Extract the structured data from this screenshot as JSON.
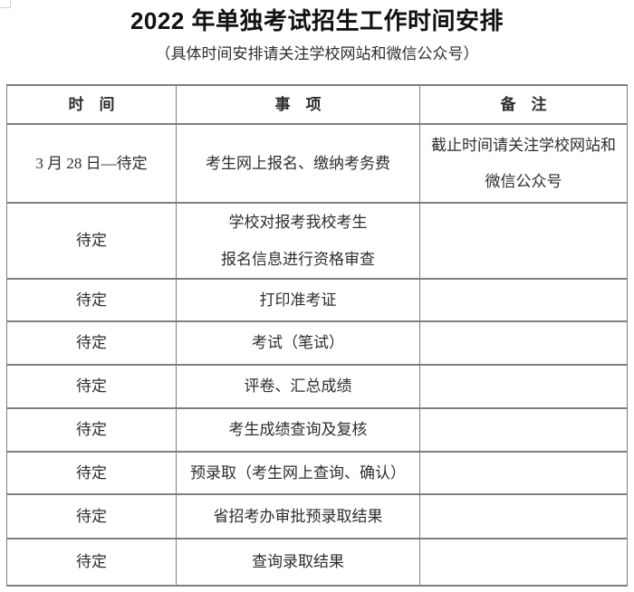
{
  "page": {
    "title": "2022 年单独考试招生工作时间安排",
    "subtitle": "（具体时间安排请关注学校网站和微信公众号）"
  },
  "table": {
    "headers": [
      "时　间",
      "事　项",
      "备　注"
    ],
    "rows": [
      {
        "time": "3 月 28 日—待定",
        "item_lines": [
          "考生网上报名、缴纳考务费"
        ],
        "note_lines": [
          "截止时间请关注学校网站和",
          "微信公众号"
        ]
      },
      {
        "time": "待定",
        "item_lines": [
          "学校对报考我校考生",
          "报名信息进行资格审查"
        ]
      },
      {
        "time": "待定",
        "item_lines": [
          "打印准考证"
        ]
      },
      {
        "time": "待定",
        "item_lines": [
          "考试（笔试）"
        ]
      },
      {
        "time": "待定",
        "item_lines": [
          "评卷、汇总成绩"
        ]
      },
      {
        "time": "待定",
        "item_lines": [
          "考生成绩查询及复核"
        ]
      },
      {
        "time": "待定",
        "item_lines": [
          "预录取（考生网上查询、确认）"
        ]
      },
      {
        "time": "待定",
        "item_lines": [
          "省招考办审批预录取结果"
        ]
      },
      {
        "time": "待定",
        "item_lines": [
          "查询录取结果"
        ]
      }
    ]
  },
  "colors": {
    "border": "#7f7f7f",
    "text": "#2e2e2e",
    "title": "#111111",
    "background": "#ffffff",
    "artifact": "#d4d4d4"
  }
}
